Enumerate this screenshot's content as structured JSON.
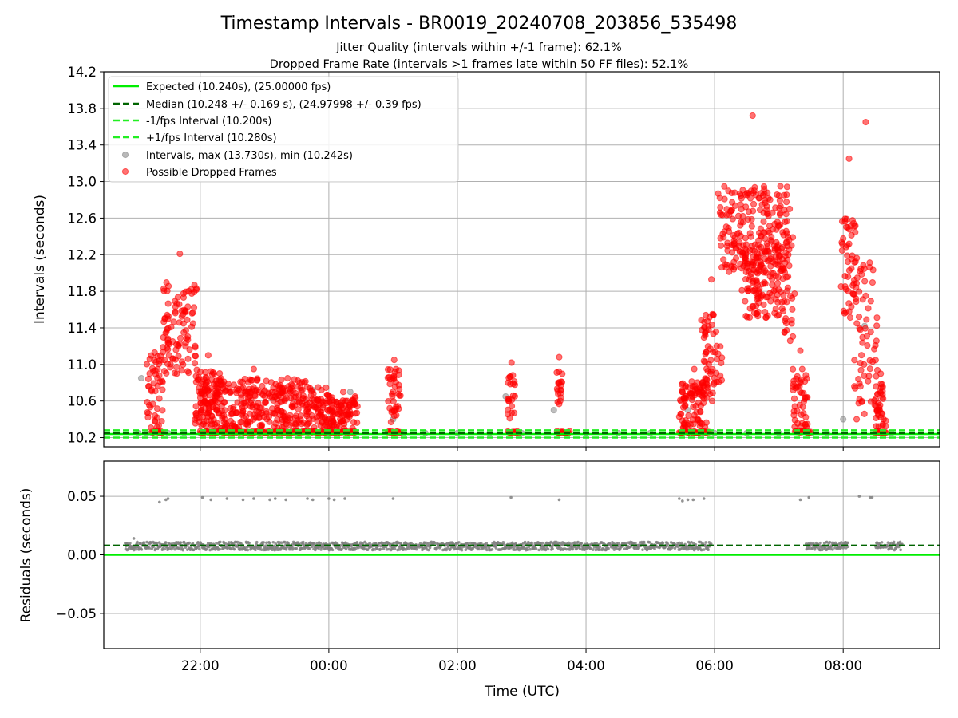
{
  "figure": {
    "title": "Timestamp Intervals - BR0019_20240708_203856_535498",
    "subtitle1": "Jitter Quality (intervals within +/-1 frame): 62.1%",
    "subtitle2": "Dropped Frame Rate (intervals >1 frames late within 50 FF files): 52.1%",
    "xlabel": "Time (UTC)"
  },
  "colors": {
    "expected": "#00ee00",
    "median": "#006400",
    "interval_band": "#22ee22",
    "intervals": "#808080",
    "dropped": "#ff0000",
    "grid": "#b0b0b0"
  },
  "chart_data": [
    {
      "type": "scatter",
      "panel": "top",
      "ylabel": "Intervals (seconds)",
      "xlim": [
        "20:30",
        "09:30"
      ],
      "ylim": [
        10.1,
        14.2
      ],
      "yticks": [
        "10.2",
        "10.6",
        "11.0",
        "11.4",
        "11.8",
        "12.2",
        "12.6",
        "13.0",
        "13.4",
        "13.8",
        "14.2"
      ],
      "xticks": [
        "22:00",
        "00:00",
        "02:00",
        "04:00",
        "06:00",
        "08:00"
      ],
      "grid": true,
      "legend_position": "upper-left",
      "legend": [
        {
          "label": "Expected (10.240s), (25.00000 fps)",
          "style": "solid",
          "color": "#00ee00"
        },
        {
          "label": "Median (10.248 +/- 0.169 s), (24.97998 +/- 0.39 fps)",
          "style": "dashed",
          "color": "#006400"
        },
        {
          "label": "-1/fps Interval (10.200s)",
          "style": "dashed",
          "color": "#22ee22"
        },
        {
          "label": "+1/fps Interval (10.280s)",
          "style": "dashed",
          "color": "#22ee22"
        },
        {
          "label": "Intervals, max (13.730s), min (10.242s)",
          "style": "marker",
          "color": "#808080"
        },
        {
          "label": "Possible Dropped Frames",
          "style": "marker",
          "color": "#ff0000"
        }
      ],
      "reference_lines": {
        "expected": 10.24,
        "median": 10.248,
        "minus_1_fps": 10.2,
        "plus_1_fps": 10.28
      },
      "series": [
        {
          "name": "Intervals, max (13.730s), min (10.242s)",
          "x": [
            "21:02",
            "21:05",
            "21:10",
            "21:15",
            "21:22",
            "21:30",
            "21:45",
            "22:00",
            "22:30",
            "23:00",
            "23:30",
            "23:45",
            "00:00",
            "00:20",
            "01:00",
            "01:10",
            "01:30",
            "02:00",
            "02:30",
            "02:45",
            "03:00",
            "03:30",
            "03:35",
            "04:00",
            "04:30",
            "05:00",
            "05:30",
            "05:35",
            "05:50",
            "06:00",
            "06:30",
            "07:00",
            "07:30",
            "07:45",
            "08:00",
            "08:20",
            "08:45"
          ],
          "y": [
            10.25,
            10.85,
            10.25,
            10.25,
            10.25,
            10.25,
            10.25,
            10.25,
            10.25,
            10.25,
            10.25,
            10.72,
            10.25,
            10.7,
            10.4,
            10.25,
            10.25,
            10.25,
            10.25,
            10.65,
            10.25,
            10.5,
            10.25,
            10.25,
            10.25,
            10.25,
            10.25,
            10.5,
            10.25,
            10.25,
            10.25,
            10.25,
            10.25,
            10.25,
            10.4,
            11.42,
            10.25
          ]
        },
        {
          "name": "Possible Dropped Frames",
          "clusters": [
            {
              "start": "21:10",
              "end": "21:25",
              "ymin": 10.3,
              "ymax": 11.1,
              "peak": 11.13
            },
            {
              "start": "21:25",
              "end": "21:57",
              "ymin": 10.9,
              "ymax": 11.9,
              "peak": 12.21
            },
            {
              "start": "21:55",
              "end": "22:20",
              "ymin": 10.35,
              "ymax": 10.95,
              "peak": 11.1
            },
            {
              "start": "22:00",
              "end": "23:40",
              "ymin": 10.3,
              "ymax": 10.85,
              "peak": 10.95
            },
            {
              "start": "23:40",
              "end": "00:00",
              "ymin": 10.3,
              "ymax": 10.75,
              "peak": 10.75
            },
            {
              "start": "00:00",
              "end": "00:27",
              "ymin": 10.3,
              "ymax": 10.65,
              "peak": 10.7
            },
            {
              "start": "00:55",
              "end": "01:07",
              "ymin": 10.35,
              "ymax": 10.95,
              "peak": 11.05
            },
            {
              "start": "02:47",
              "end": "02:54",
              "ymin": 10.4,
              "ymax": 10.95,
              "peak": 11.02
            },
            {
              "start": "03:32",
              "end": "03:38",
              "ymin": 10.4,
              "ymax": 10.95,
              "peak": 11.08
            },
            {
              "start": "05:27",
              "end": "05:55",
              "ymin": 10.3,
              "ymax": 10.85,
              "peak": 10.95
            },
            {
              "start": "05:47",
              "end": "06:07",
              "ymin": 10.6,
              "ymax": 11.55,
              "peak": 11.93
            },
            {
              "start": "06:03",
              "end": "07:08",
              "ymin": 12.0,
              "ymax": 12.95,
              "peak": 13.72
            },
            {
              "start": "06:25",
              "end": "07:05",
              "ymin": 11.5,
              "ymax": 12.3,
              "peak": 11.88
            },
            {
              "start": "07:05",
              "end": "07:15",
              "ymin": 11.2,
              "ymax": 12.4,
              "peak": 12.7
            },
            {
              "start": "07:13",
              "end": "07:27",
              "ymin": 10.3,
              "ymax": 11.0,
              "peak": 11.15
            },
            {
              "start": "07:58",
              "end": "08:13",
              "ymin": 11.5,
              "ymax": 12.6,
              "peak": 13.25
            },
            {
              "start": "08:10",
              "end": "08:32",
              "ymin": 10.4,
              "ymax": 12.2,
              "peak": 13.65
            },
            {
              "start": "08:30",
              "end": "08:40",
              "ymin": 10.3,
              "ymax": 10.8,
              "peak": 10.9
            }
          ],
          "baseline_segments": [
            [
              "21:15",
              "21:25"
            ],
            [
              "22:00",
              "00:25"
            ],
            [
              "00:55",
              "01:07"
            ],
            [
              "02:47",
              "02:57"
            ],
            [
              "03:33",
              "03:45"
            ],
            [
              "05:27",
              "05:55"
            ],
            [
              "07:15",
              "07:30"
            ],
            [
              "08:30",
              "08:40"
            ]
          ]
        }
      ]
    },
    {
      "type": "scatter",
      "panel": "bottom",
      "ylabel": "Residuals (seconds)",
      "xlabel": "Time (UTC)",
      "xlim": [
        "20:30",
        "09:30"
      ],
      "ylim": [
        -0.08,
        0.08
      ],
      "yticks": [
        "−0.05",
        "0.00",
        "0.05"
      ],
      "xticks": [
        "22:00",
        "00:00",
        "02:00",
        "04:00",
        "06:00",
        "08:00"
      ],
      "grid": true,
      "reference_lines": {
        "zero": 0.0,
        "median": 0.008
      },
      "series": [
        {
          "name": "Residuals",
          "band": {
            "start": "20:50",
            "end": "08:55",
            "ymin": 0.004,
            "ymax": 0.011,
            "gaps": [
              [
                "05:57",
                "07:25"
              ],
              [
                "08:05",
                "08:30"
              ]
            ]
          },
          "high_points": {
            "x": [
              "21:22",
              "21:28",
              "21:30",
              "22:02",
              "22:10",
              "22:25",
              "22:40",
              "22:50",
              "23:05",
              "23:10",
              "23:20",
              "23:40",
              "23:45",
              "00:00",
              "00:05",
              "00:15",
              "01:00",
              "02:50",
              "03:35",
              "05:27",
              "05:30",
              "05:35",
              "05:40",
              "05:50",
              "07:20",
              "07:28",
              "08:15",
              "08:25",
              "08:27"
            ],
            "y": [
              0.045,
              0.047,
              0.048,
              0.049,
              0.047,
              0.048,
              0.047,
              0.048,
              0.047,
              0.048,
              0.047,
              0.048,
              0.047,
              0.048,
              0.047,
              0.048,
              0.048,
              0.049,
              0.047,
              0.048,
              0.046,
              0.047,
              0.047,
              0.048,
              0.047,
              0.049,
              0.05,
              0.049,
              0.049
            ]
          },
          "extra_points": {
            "x": [
              "20:58"
            ],
            "y": [
              0.014
            ]
          }
        }
      ]
    }
  ]
}
